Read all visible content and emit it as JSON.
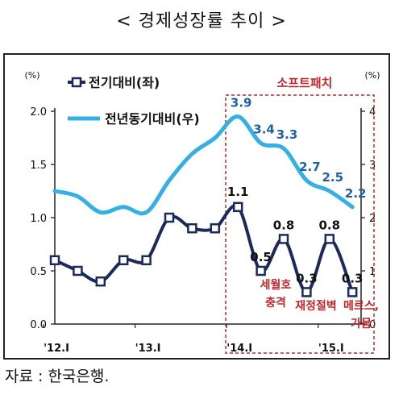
{
  "title": "< 경제성장률 추이 >",
  "source": "자료 : 한국은행.",
  "chart_data": {
    "type": "line",
    "left_unit": "(%)",
    "right_unit": "(%)",
    "left_ylim": [
      0,
      2.0
    ],
    "left_ticks": [
      "0.0",
      "0.5",
      "1.0",
      "1.5",
      "2.0"
    ],
    "right_ylim": [
      0,
      4
    ],
    "right_ticks": [
      "0",
      "1",
      "2",
      "3",
      "4"
    ],
    "x_tick_labels": [
      "'12.I",
      "'13.I",
      "'14.I",
      "'15.I"
    ],
    "series": [
      {
        "name": "전기대비(좌)",
        "axis": "left",
        "color": "#1b2a5a",
        "values": [
          0.6,
          0.5,
          0.4,
          0.6,
          0.6,
          1.0,
          0.9,
          0.9,
          1.1,
          0.5,
          0.8,
          0.3,
          0.8,
          0.3
        ],
        "labels": [
          "",
          "",
          "",
          "",
          "",
          "",
          "",
          "",
          "1.1",
          "0.5",
          "0.8",
          "0.3",
          "0.8",
          "0.3"
        ]
      },
      {
        "name": "전년동기대비(우)",
        "axis": "right",
        "color": "#35b0e4",
        "values": [
          2.5,
          2.4,
          2.1,
          2.2,
          2.1,
          2.7,
          3.2,
          3.5,
          3.9,
          3.4,
          3.3,
          2.7,
          2.5,
          2.2
        ],
        "labels": [
          "",
          "",
          "",
          "",
          "",
          "",
          "",
          "",
          "3.9",
          "3.4",
          "3.3",
          "2.7",
          "2.5",
          "2.2"
        ]
      }
    ],
    "highlight_label": "소프트패치",
    "annotations": [
      {
        "text": [
          "세월호",
          "충격"
        ],
        "at_index": 9
      },
      {
        "text": [
          "재정절벽"
        ],
        "at_index": 11
      },
      {
        "text": [
          "메르스,",
          "가뭄"
        ],
        "at_index": 13
      }
    ],
    "accent_color": "#c0272d"
  }
}
